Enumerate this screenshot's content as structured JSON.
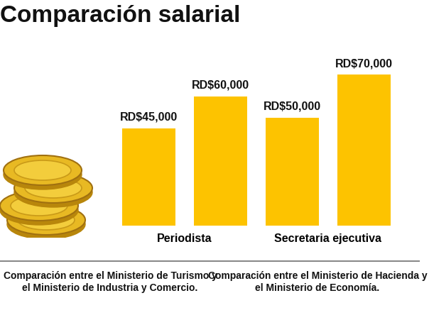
{
  "chart_data": {
    "type": "bar",
    "title": "Comparación salarial",
    "categories": [
      "Periodista",
      "Secretaria ejecutiva"
    ],
    "series": [
      {
        "color": "#fdc300",
        "values": [
          45000,
          50000
        ],
        "value_labels": [
          "RD$45,000",
          "RD$50,000"
        ]
      },
      {
        "color": "#fdc300",
        "values": [
          60000,
          70000
        ],
        "value_labels": [
          "RD$60,000",
          "RD$70,000"
        ]
      }
    ],
    "ylim": [
      0,
      80000
    ],
    "data_labels": true,
    "tick_labels": "x",
    "grid": false,
    "annotations": [
      "Comparación entre el Ministerio de Turismo y el Ministerio de Industria y Comercio.",
      "Comparación entre el Ministerio de Hacienda y el Ministerio de Economía."
    ]
  }
}
